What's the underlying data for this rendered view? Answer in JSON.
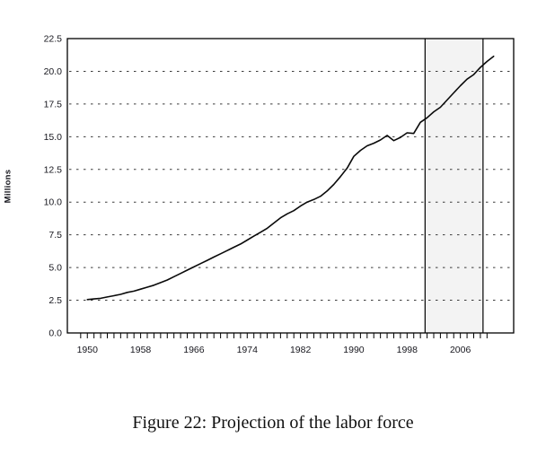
{
  "figure": {
    "caption": "Figure 22: Projection of the labor force"
  },
  "chart_data": {
    "type": "line",
    "title": "",
    "xlabel": "",
    "ylabel": "Millions",
    "ylim": [
      0,
      22.5
    ],
    "xlim": [
      1947,
      2014
    ],
    "grid": "horizontal-dotted",
    "legend_position": "none",
    "y_ticks": [
      0.0,
      2.5,
      5.0,
      7.5,
      10.0,
      12.5,
      15.0,
      17.5,
      20.0,
      22.5
    ],
    "gridlines_at": [
      2.5,
      5.0,
      7.5,
      10.0,
      12.5,
      15.0,
      17.5,
      20.0
    ],
    "x_tick_labels": [
      1950,
      1958,
      1966,
      1974,
      1982,
      1990,
      1998,
      2006
    ],
    "x_minor_ticks": {
      "start": 1949,
      "end": 2010,
      "step": 1
    },
    "projection_band": {
      "from_year": 2000.7,
      "to_year": 2009.4
    },
    "series": [
      {
        "name": "labor-force",
        "x": [
          1950,
          1951,
          1952,
          1953,
          1954,
          1955,
          1956,
          1957,
          1958,
          1959,
          1960,
          1961,
          1962,
          1963,
          1964,
          1965,
          1966,
          1967,
          1968,
          1969,
          1970,
          1971,
          1972,
          1973,
          1974,
          1975,
          1976,
          1977,
          1978,
          1979,
          1980,
          1981,
          1982,
          1983,
          1984,
          1985,
          1986,
          1987,
          1988,
          1989,
          1990,
          1991,
          1992,
          1993,
          1994,
          1995,
          1996,
          1997,
          1998,
          1999,
          2000,
          2001,
          2002,
          2003,
          2004,
          2005,
          2006,
          2007,
          2008,
          2009,
          2010,
          2011
        ],
        "y": [
          2.55,
          2.6,
          2.65,
          2.75,
          2.85,
          2.95,
          3.1,
          3.2,
          3.35,
          3.5,
          3.65,
          3.85,
          4.05,
          4.3,
          4.55,
          4.8,
          5.05,
          5.3,
          5.55,
          5.8,
          6.05,
          6.3,
          6.55,
          6.8,
          7.1,
          7.4,
          7.7,
          8.0,
          8.4,
          8.8,
          9.1,
          9.35,
          9.7,
          10.0,
          10.2,
          10.45,
          10.85,
          11.35,
          11.95,
          12.6,
          13.5,
          13.95,
          14.3,
          14.5,
          14.75,
          15.1,
          14.7,
          14.95,
          15.3,
          15.25,
          16.1,
          16.45,
          16.9,
          17.25,
          17.8,
          18.35,
          18.9,
          19.4,
          19.75,
          20.3,
          20.75,
          21.15
        ]
      }
    ],
    "colors": {
      "line": "#0a0a0a",
      "plot_border": "#000000",
      "gridline": "#3a3a3a",
      "band_fill": "#f3f3f3",
      "band_edge": "#000000",
      "tick_text": "#16161d",
      "background": "#ffffff"
    }
  }
}
